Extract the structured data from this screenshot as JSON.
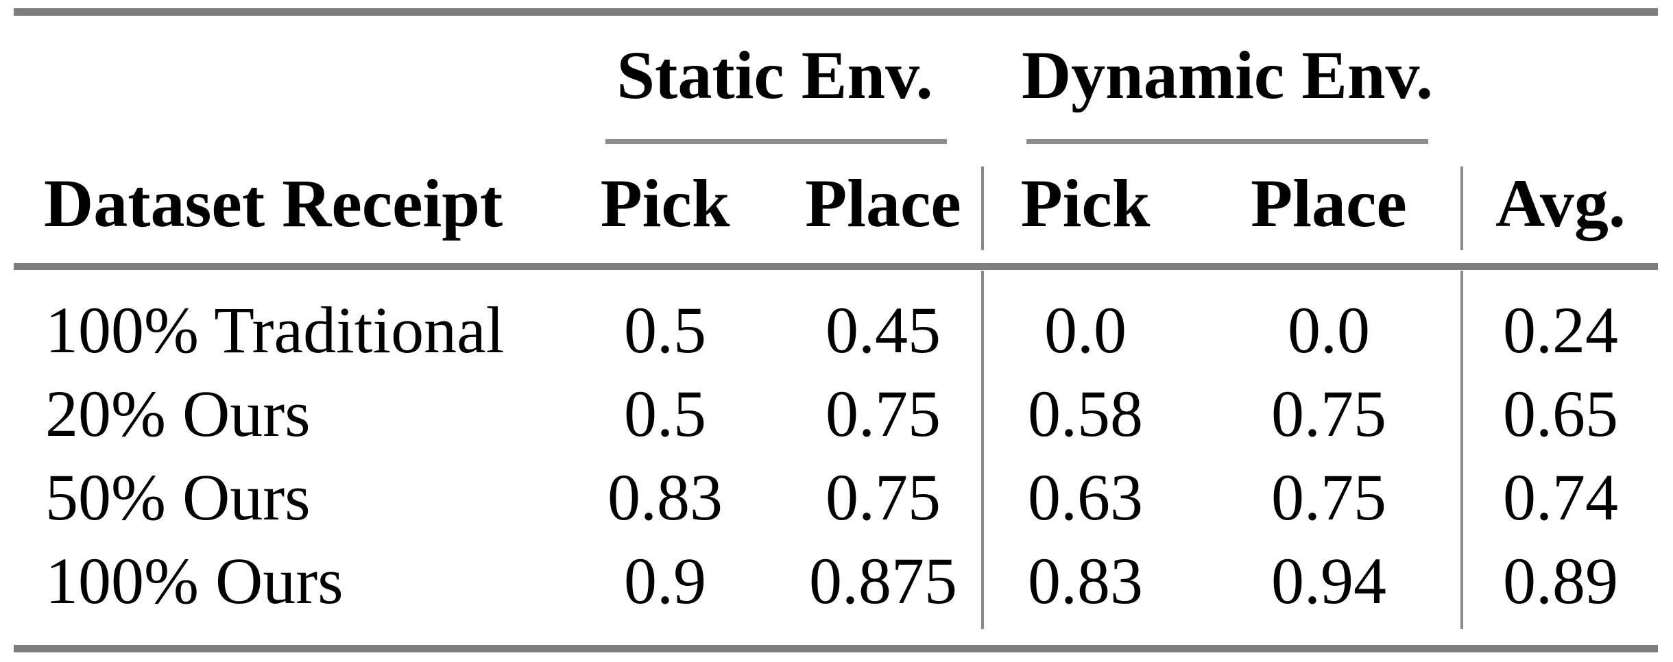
{
  "figure": {
    "kind": "paper-results-table",
    "groups": [
      {
        "label": "Static Env."
      },
      {
        "label": "Dynamic Env."
      }
    ],
    "columns": {
      "row_header": "Dataset Receipt",
      "static_pick": "Pick",
      "static_place": "Place",
      "dynamic_pick": "Pick",
      "dynamic_place": "Place",
      "avg": "Avg."
    },
    "rows": [
      {
        "label": "100% Traditional",
        "static_pick": "0.5",
        "static_place": "0.45",
        "dynamic_pick": "0.0",
        "dynamic_place": "0.0",
        "avg": "0.24"
      },
      {
        "label": "20% Ours",
        "static_pick": "0.5",
        "static_place": "0.75",
        "dynamic_pick": "0.58",
        "dynamic_place": "0.75",
        "avg": "0.65"
      },
      {
        "label": "50% Ours",
        "static_pick": "0.83",
        "static_place": "0.75",
        "dynamic_pick": "0.63",
        "dynamic_place": "0.75",
        "avg": "0.74"
      },
      {
        "label": "100% Ours",
        "static_pick": "0.9",
        "static_place": "0.875",
        "dynamic_pick": "0.83",
        "dynamic_place": "0.94",
        "avg": "0.89"
      }
    ],
    "colors": {
      "text": "#000000",
      "thick_rule": "#7d7d7d",
      "thin_rule": "#8c8c8c",
      "background": "#ffffff"
    }
  },
  "chart_data": {
    "type": "table",
    "title": "",
    "columns": [
      "Dataset Receipt",
      "Static Env. Pick",
      "Static Env. Place",
      "Dynamic Env. Pick",
      "Dynamic Env. Place",
      "Avg."
    ],
    "rows": [
      [
        "100% Traditional",
        0.5,
        0.45,
        0.0,
        0.0,
        0.24
      ],
      [
        "20% Ours",
        0.5,
        0.75,
        0.58,
        0.75,
        0.65
      ],
      [
        "50% Ours",
        0.83,
        0.75,
        0.63,
        0.75,
        0.74
      ],
      [
        "100% Ours",
        0.9,
        0.875,
        0.83,
        0.94,
        0.89
      ]
    ]
  }
}
